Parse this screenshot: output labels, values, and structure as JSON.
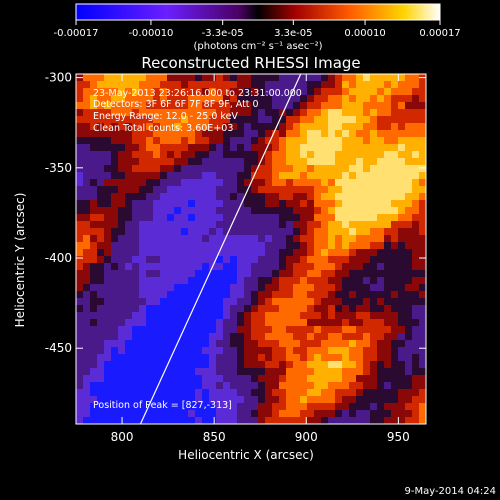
{
  "chart_data": {
    "type": "heatmap",
    "title": "Reconstructed RHESSI Image",
    "xlabel": "Heliocentric X (arcsec)",
    "ylabel": "Heliocentric Y (arcsec)",
    "xlim": [
      775,
      965
    ],
    "ylim": [
      -492,
      -298
    ],
    "x_ticks": [
      800,
      850,
      900,
      950
    ],
    "y_ticks": [
      -300,
      -350,
      -400,
      -450
    ],
    "colorbar": {
      "range": [
        -0.00017,
        0.00017
      ],
      "ticks": [
        -0.00017,
        -0.0001,
        -3.3e-05,
        3.3e-05,
        0.0001,
        0.00017
      ],
      "tick_labels": [
        "-0.00017",
        "-0.00010",
        "-3.3e-05",
        "3.3e-05",
        "0.00010",
        "0.00017"
      ],
      "label": "(photons cm⁻² s⁻¹ asec⁻²)"
    },
    "annotations": {
      "time": "23-May-2013 23:26:16.000 to 23:31:00.000",
      "detectors": "Detectors: 3F 6F 6F 7F 8F 9F, Att 0",
      "energy": "Energy Range: 12.0 - 25.0 keV",
      "clean": "Clean     Total counts: 3.60E+03",
      "peak": "Position of Peak = [827,-313]"
    },
    "limb_line": {
      "x": [
        810,
        897
      ],
      "y": [
        -492,
        -298
      ]
    },
    "footer": "9-May-2014 04:24",
    "grid": false
  }
}
